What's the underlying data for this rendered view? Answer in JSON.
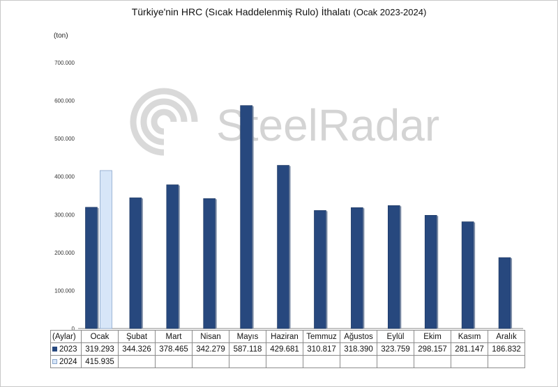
{
  "title": "Türkiye'nin HRC (Sıcak Haddelenmiş Rulo) İthalatı",
  "subtitle": "(Ocak 2023-2024)",
  "unit_label": "(ton)",
  "row_header_label": "(Aylar)",
  "watermark_text": "SteelRadar",
  "colors": {
    "s2023": "#27487e",
    "s2024": "#d7e6f8"
  },
  "chart_data": {
    "type": "bar",
    "categories": [
      "Ocak",
      "Şubat",
      "Mart",
      "Nisan",
      "Mayıs",
      "Haziran",
      "Temmuz",
      "Ağustos",
      "Eylül",
      "Ekim",
      "Kasım",
      "Aralık"
    ],
    "series": [
      {
        "name": "2023",
        "values": [
          319293,
          344326,
          378465,
          342279,
          587118,
          429681,
          310817,
          318390,
          323759,
          298157,
          281147,
          186832
        ],
        "labels": [
          "319.293",
          "344.326",
          "378.465",
          "342.279",
          "587.118",
          "429.681",
          "310.817",
          "318.390",
          "323.759",
          "298.157",
          "281.147",
          "186.832"
        ]
      },
      {
        "name": "2024",
        "values": [
          415935,
          null,
          null,
          null,
          null,
          null,
          null,
          null,
          null,
          null,
          null,
          null
        ],
        "labels": [
          "415.935",
          "",
          "",
          "",
          "",
          "",
          "",
          "",
          "",
          "",
          "",
          ""
        ]
      }
    ],
    "ylim": [
      0,
      700000
    ],
    "yticks": [
      "0",
      "100.000",
      "200.000",
      "300.000",
      "400.000",
      "500.000",
      "600.000",
      "700.000"
    ],
    "legend": "data-table"
  }
}
